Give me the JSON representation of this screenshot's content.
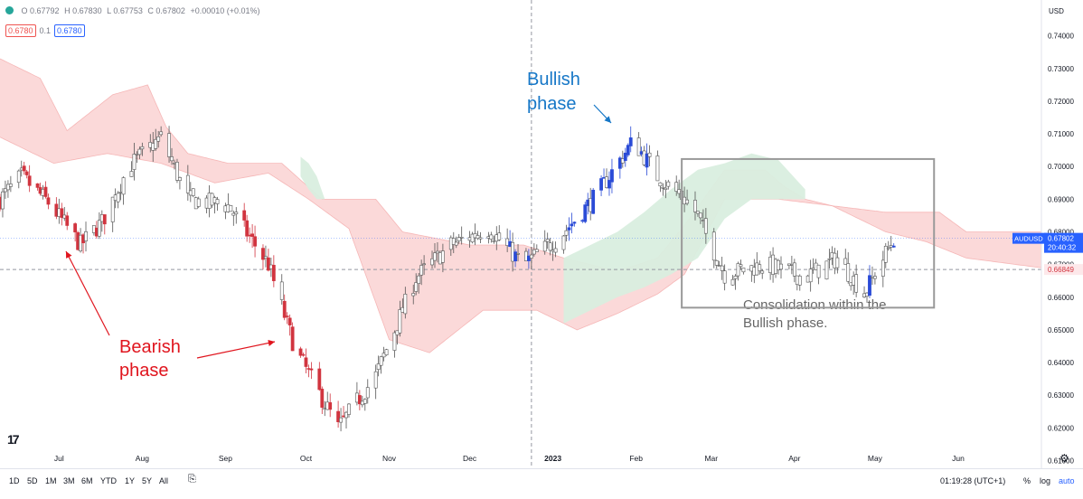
{
  "ohlc": {
    "open": "O 0.67792",
    "high": "H 0.67830",
    "low": "L 0.67753",
    "close": "C 0.67802",
    "change": "+0.00010 (+0.01%)"
  },
  "indicator": {
    "left_value": "0.6780",
    "mid": "0.1",
    "right_value": "0.6780"
  },
  "currency_label": "USD",
  "timeframes": [
    "1D",
    "5D",
    "1M",
    "3M",
    "6M",
    "YTD",
    "1Y",
    "5Y",
    "All"
  ],
  "clock": "01:19:28 (UTC+1)",
  "percent_label": "%",
  "log_label": "log",
  "auto_label": "auto",
  "colors": {
    "bear": "#d1343f",
    "bull": "#2a4bd7",
    "neutral": "#ffffff",
    "cloud_bear": "#fbd9d9",
    "cloud_bull": "#d9eedf",
    "annotation_red": "#e0151e",
    "annotation_blue": "#1677c7",
    "annotation_grey": "#666666"
  },
  "chart_data": {
    "type": "candlestick",
    "symbol": "AUDUSD",
    "ylim": [
      0.614,
      0.746
    ],
    "y_ticks": [
      "0.74000",
      "0.73000",
      "0.72000",
      "0.71000",
      "0.70000",
      "0.69000",
      "0.68000",
      "0.67000",
      "0.66000",
      "0.65000",
      "0.64000",
      "0.63000",
      "0.62000",
      "0.61000"
    ],
    "x_ticks": [
      {
        "label": "Jul",
        "day": 22
      },
      {
        "label": "Aug",
        "day": 53
      },
      {
        "label": "Sep",
        "day": 84
      },
      {
        "label": "Oct",
        "day": 114
      },
      {
        "label": "Nov",
        "day": 145
      },
      {
        "label": "Dec",
        "day": 175
      },
      {
        "label": "2023",
        "day": 206
      },
      {
        "label": "Feb",
        "day": 237
      },
      {
        "label": "Mar",
        "day": 265
      },
      {
        "label": "Apr",
        "day": 296
      },
      {
        "label": "May",
        "day": 326
      },
      {
        "label": "Jun",
        "day": 357
      }
    ],
    "x_range_days": [
      0,
      388
    ],
    "last_price": {
      "symbol_label": "AUDUSD",
      "value": "0.67802",
      "countdown": "20:40:32",
      "level": 0.67802
    },
    "level_line": {
      "value": "0.66849",
      "level": 0.66849
    },
    "price_path": [
      {
        "day": 0,
        "price": 0.69
      },
      {
        "day": 8,
        "price": 0.697
      },
      {
        "day": 18,
        "price": 0.689
      },
      {
        "day": 30,
        "price": 0.676
      },
      {
        "day": 38,
        "price": 0.683
      },
      {
        "day": 48,
        "price": 0.7
      },
      {
        "day": 60,
        "price": 0.709
      },
      {
        "day": 70,
        "price": 0.69
      },
      {
        "day": 85,
        "price": 0.688
      },
      {
        "day": 100,
        "price": 0.67
      },
      {
        "day": 110,
        "price": 0.644
      },
      {
        "day": 126,
        "price": 0.62
      },
      {
        "day": 140,
        "price": 0.636
      },
      {
        "day": 155,
        "price": 0.666
      },
      {
        "day": 168,
        "price": 0.676
      },
      {
        "day": 182,
        "price": 0.681
      },
      {
        "day": 195,
        "price": 0.67
      },
      {
        "day": 208,
        "price": 0.678
      },
      {
        "day": 222,
        "price": 0.691
      },
      {
        "day": 236,
        "price": 0.708
      },
      {
        "day": 245,
        "price": 0.697
      },
      {
        "day": 258,
        "price": 0.688
      },
      {
        "day": 270,
        "price": 0.667
      },
      {
        "day": 285,
        "price": 0.67
      },
      {
        "day": 300,
        "price": 0.666
      },
      {
        "day": 312,
        "price": 0.672
      },
      {
        "day": 322,
        "price": 0.661
      },
      {
        "day": 333,
        "price": 0.678
      }
    ],
    "cloud": {
      "upper": [
        {
          "day": 0,
          "price": 0.733
        },
        {
          "day": 15,
          "price": 0.727
        },
        {
          "day": 25,
          "price": 0.711
        },
        {
          "day": 42,
          "price": 0.722
        },
        {
          "day": 55,
          "price": 0.725
        },
        {
          "day": 62,
          "price": 0.712
        },
        {
          "day": 70,
          "price": 0.704
        },
        {
          "day": 85,
          "price": 0.701
        },
        {
          "day": 105,
          "price": 0.701
        },
        {
          "day": 120,
          "price": 0.69
        },
        {
          "day": 140,
          "price": 0.69
        },
        {
          "day": 150,
          "price": 0.68
        },
        {
          "day": 175,
          "price": 0.676
        },
        {
          "day": 195,
          "price": 0.676
        },
        {
          "day": 210,
          "price": 0.672
        },
        {
          "day": 230,
          "price": 0.668
        },
        {
          "day": 245,
          "price": 0.672
        },
        {
          "day": 255,
          "price": 0.682
        },
        {
          "day": 270,
          "price": 0.699
        },
        {
          "day": 285,
          "price": 0.699
        },
        {
          "day": 292,
          "price": 0.694
        },
        {
          "day": 300,
          "price": 0.69
        },
        {
          "day": 310,
          "price": 0.688
        },
        {
          "day": 330,
          "price": 0.686
        },
        {
          "day": 350,
          "price": 0.686
        },
        {
          "day": 360,
          "price": 0.68
        },
        {
          "day": 388,
          "price": 0.68
        }
      ],
      "lower": [
        {
          "day": 0,
          "price": 0.709
        },
        {
          "day": 20,
          "price": 0.701
        },
        {
          "day": 40,
          "price": 0.704
        },
        {
          "day": 60,
          "price": 0.701
        },
        {
          "day": 80,
          "price": 0.695
        },
        {
          "day": 100,
          "price": 0.698
        },
        {
          "day": 115,
          "price": 0.69
        },
        {
          "day": 130,
          "price": 0.681
        },
        {
          "day": 145,
          "price": 0.647
        },
        {
          "day": 160,
          "price": 0.643
        },
        {
          "day": 180,
          "price": 0.656
        },
        {
          "day": 200,
          "price": 0.656
        },
        {
          "day": 215,
          "price": 0.65
        },
        {
          "day": 230,
          "price": 0.655
        },
        {
          "day": 245,
          "price": 0.661
        },
        {
          "day": 255,
          "price": 0.667
        },
        {
          "day": 270,
          "price": 0.69
        },
        {
          "day": 290,
          "price": 0.69
        },
        {
          "day": 310,
          "price": 0.688
        },
        {
          "day": 330,
          "price": 0.68
        },
        {
          "day": 345,
          "price": 0.677
        },
        {
          "day": 360,
          "price": 0.672
        },
        {
          "day": 388,
          "price": 0.669
        }
      ]
    },
    "annotations": [
      {
        "name": "bearish-phase-label",
        "lines": [
          "Bearish",
          "phase"
        ],
        "color": "annotation_red"
      },
      {
        "name": "bullish-phase-label",
        "lines": [
          "Bullish",
          "phase"
        ],
        "color": "annotation_blue"
      },
      {
        "name": "consolidation-label",
        "lines": [
          "Consolidation within the",
          "Bullish phase."
        ],
        "color": "annotation_grey"
      }
    ],
    "consolidation_box": {
      "day_start": 254,
      "day_end": 348,
      "price_top": 0.7023,
      "price_bottom": 0.6568
    },
    "crosshair_day": 198
  }
}
